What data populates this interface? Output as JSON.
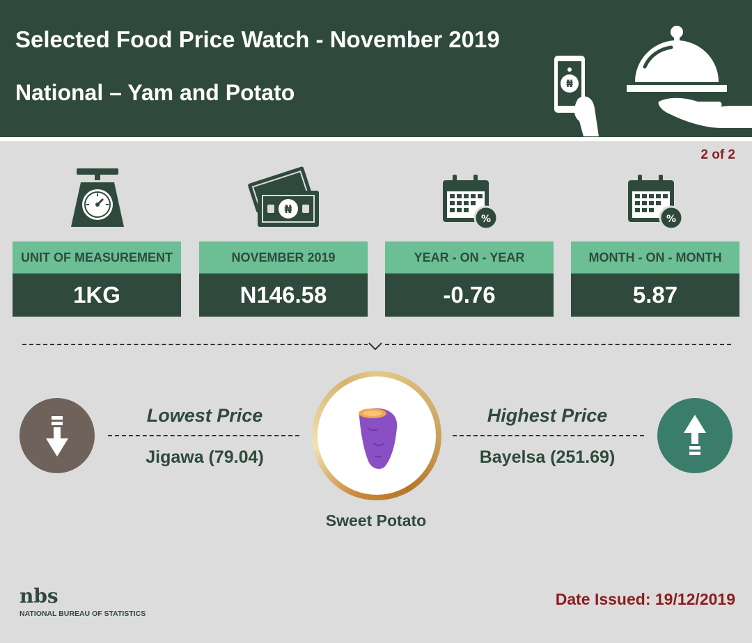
{
  "header": {
    "title": "Selected Food Price Watch - November 2019",
    "subtitle": "National – Yam and Potato"
  },
  "page_indicator": "2 of 2",
  "currency_symbol": "₦",
  "percent_symbol": "%",
  "cards": [
    {
      "label": "UNIT OF MEASUREMENT",
      "value": "1KG",
      "icon": "weighing-scale-icon"
    },
    {
      "label": "NOVEMBER 2019",
      "value": "N146.58",
      "icon": "naira-banknotes-icon"
    },
    {
      "label": "YEAR - ON - YEAR",
      "value": "-0.76",
      "icon": "calendar-percent-icon"
    },
    {
      "label": "MONTH - ON - MONTH",
      "value": "5.87",
      "icon": "calendar-percent-icon"
    }
  ],
  "lowest": {
    "heading": "Lowest Price",
    "value": "Jigawa (79.04)"
  },
  "highest": {
    "heading": "Highest Price",
    "value": "Bayelsa (251.69)"
  },
  "product": {
    "name": "Sweet Potato",
    "icon": "sweet-potato-icon"
  },
  "footer": {
    "logo_text": "nbs",
    "org_name": "NATIONAL BUREAU OF STATISTICS",
    "date_issued": "Date Issued: 19/12/2019"
  },
  "colors": {
    "header_bg": "#2f4a3c",
    "label_bg": "#6cbf94",
    "accent_red": "#8b1e1e",
    "down_circle": "#6f625b",
    "up_circle": "#3a7d6a"
  }
}
